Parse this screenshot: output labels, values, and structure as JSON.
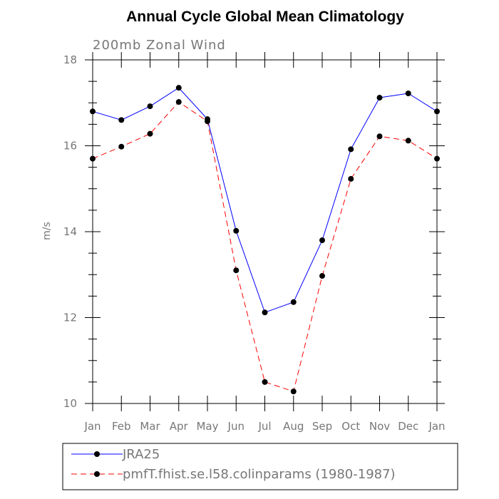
{
  "chart_data": {
    "type": "line",
    "title": "Annual Cycle Global Mean Climatology",
    "subtitle": "200mb Zonal Wind",
    "xlabel": "",
    "ylabel": "m/s",
    "categories": [
      "Jan",
      "Feb",
      "Mar",
      "Apr",
      "May",
      "Jun",
      "Jul",
      "Aug",
      "Sep",
      "Oct",
      "Nov",
      "Dec",
      "Jan"
    ],
    "ylim": [
      10,
      18
    ],
    "yticks": [
      10,
      12,
      14,
      16,
      18
    ],
    "grid": false,
    "legend_position": "bottom",
    "series": [
      {
        "name": "JRA25",
        "color": "#0000ff",
        "dash": "solid",
        "marker": "filled-circle",
        "values": [
          16.8,
          16.6,
          16.92,
          17.35,
          16.62,
          14.02,
          12.12,
          12.36,
          13.8,
          15.92,
          17.12,
          17.22,
          16.8
        ]
      },
      {
        "name": "pmfT.fhist.se.l58.colinparams (1980-1987)",
        "color": "#ff0000",
        "dash": "dashed",
        "marker": "filled-circle",
        "values": [
          15.7,
          15.98,
          16.28,
          17.02,
          16.57,
          13.1,
          10.5,
          10.28,
          12.97,
          15.23,
          16.22,
          16.12,
          15.7
        ]
      }
    ]
  }
}
